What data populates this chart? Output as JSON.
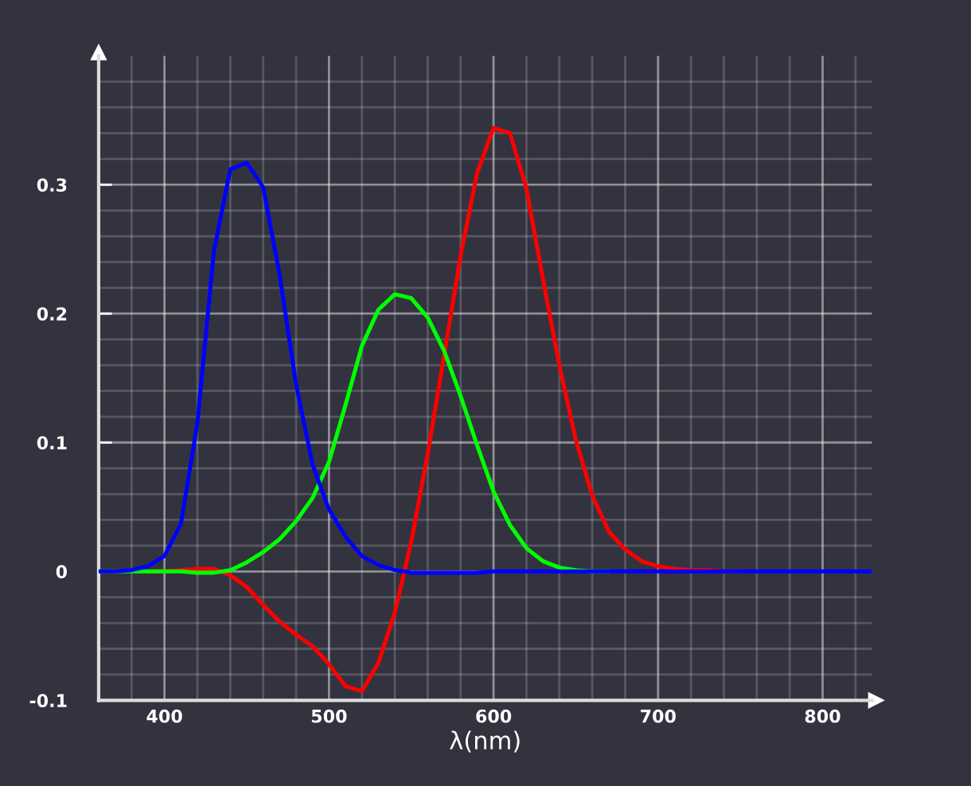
{
  "chart_data": {
    "type": "line",
    "xlabel": "λ(nm)",
    "xlim": [
      360,
      830
    ],
    "xticks": [
      400,
      500,
      600,
      700,
      800
    ],
    "ylim": [
      -0.1,
      0.4
    ],
    "yticks": [
      {
        "value": -0.1,
        "label": "-0.1"
      },
      0,
      0.1,
      0.2,
      0.3
    ],
    "grid": true,
    "marker": "none",
    "line_style": "solid",
    "series": [
      {
        "color": "#ff0000",
        "x": [
          390,
          400,
          410,
          420,
          430,
          440,
          450,
          460,
          470,
          480,
          490,
          500,
          510,
          520,
          530,
          540,
          550,
          560,
          570,
          580,
          590,
          600,
          610,
          620,
          630,
          640,
          650,
          660,
          670,
          680,
          690,
          700,
          710,
          720,
          730,
          740,
          750
        ],
        "values": [
          0,
          0,
          0.001,
          0.002,
          0.002,
          -0.003,
          -0.012,
          -0.026,
          -0.039,
          -0.049,
          -0.058,
          -0.072,
          -0.089,
          -0.093,
          -0.071,
          -0.032,
          0.023,
          0.091,
          0.168,
          0.245,
          0.309,
          0.344,
          0.34,
          0.297,
          0.227,
          0.16,
          0.102,
          0.059,
          0.031,
          0.017,
          0.008,
          0.004,
          0.002,
          0.001,
          0.001,
          0,
          0
        ]
      },
      {
        "color": "#00ff00",
        "x": [
          360,
          370,
          380,
          390,
          400,
          410,
          420,
          430,
          440,
          450,
          460,
          470,
          480,
          490,
          500,
          510,
          520,
          530,
          540,
          550,
          560,
          570,
          580,
          590,
          600,
          610,
          620,
          630,
          640,
          650,
          660,
          670
        ],
        "values": [
          0,
          0,
          0,
          0,
          0,
          0,
          -0.001,
          -0.001,
          0.001,
          0.007,
          0.015,
          0.025,
          0.039,
          0.057,
          0.085,
          0.129,
          0.175,
          0.203,
          0.215,
          0.212,
          0.197,
          0.171,
          0.136,
          0.098,
          0.062,
          0.036,
          0.018,
          0.008,
          0.003,
          0.001,
          0,
          0
        ]
      },
      {
        "color": "#0000ff",
        "x": [
          360,
          370,
          380,
          390,
          400,
          410,
          420,
          430,
          440,
          450,
          460,
          470,
          480,
          490,
          500,
          510,
          520,
          530,
          540,
          550,
          560,
          570,
          580,
          590,
          600,
          610,
          620,
          630,
          640,
          650,
          660,
          670,
          680,
          690,
          700,
          710,
          720,
          730,
          740,
          750,
          760,
          770,
          780,
          790,
          800,
          810,
          820,
          830
        ],
        "values": [
          0,
          0,
          0.001,
          0.004,
          0.012,
          0.037,
          0.115,
          0.248,
          0.312,
          0.317,
          0.298,
          0.23,
          0.145,
          0.083,
          0.048,
          0.027,
          0.012,
          0.005,
          0.001,
          -0.001,
          -0.001,
          -0.001,
          -0.001,
          -0.001,
          0,
          0,
          0,
          0,
          0,
          0,
          0,
          0,
          0,
          0,
          0,
          0,
          0,
          0,
          0,
          0,
          0,
          0,
          0,
          0,
          0,
          0,
          0,
          0
        ]
      }
    ]
  }
}
